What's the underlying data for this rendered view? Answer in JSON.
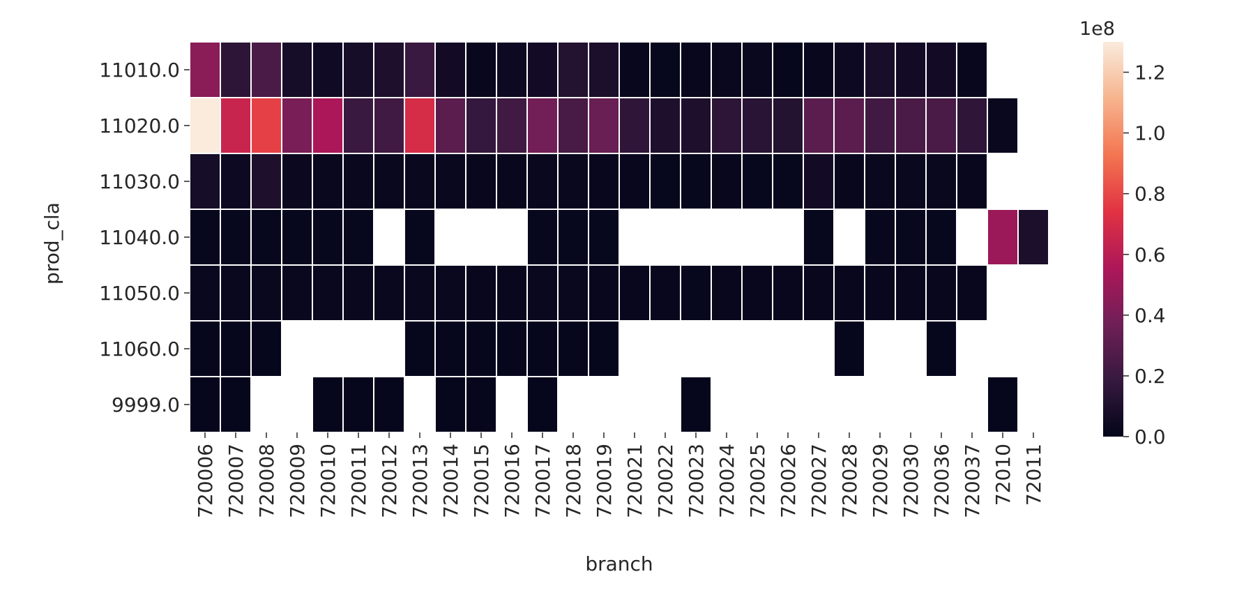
{
  "chart_data": {
    "type": "heatmap",
    "title": "",
    "xlabel": "branch",
    "ylabel": "prod_cla",
    "x": [
      "720006",
      "720007",
      "720008",
      "720009",
      "720010",
      "720011",
      "720012",
      "720013",
      "720014",
      "720015",
      "720016",
      "720017",
      "720018",
      "720019",
      "720021",
      "720022",
      "720023",
      "720024",
      "720025",
      "720026",
      "720027",
      "720028",
      "720029",
      "720030",
      "720036",
      "720037",
      "72010",
      "72011"
    ],
    "y": [
      "11010.0",
      "11020.0",
      "11030.0",
      "11040.0",
      "11050.0",
      "11060.0",
      "9999.0"
    ],
    "values": [
      [
        45000000,
        15000000,
        25000000,
        7000000,
        5000000,
        7000000,
        10000000,
        20000000,
        6000000,
        2000000,
        4000000,
        6000000,
        12000000,
        9000000,
        2000000,
        1500000,
        2000000,
        2500000,
        2500000,
        1000000,
        2000000,
        4000000,
        8000000,
        6000000,
        6000000,
        2000000,
        null,
        null
      ],
      [
        130000000,
        65000000,
        78000000,
        40000000,
        55000000,
        20000000,
        22000000,
        70000000,
        30000000,
        18000000,
        22000000,
        38000000,
        24000000,
        35000000,
        16000000,
        10000000,
        10000000,
        15000000,
        14000000,
        12000000,
        30000000,
        30000000,
        22000000,
        25000000,
        25000000,
        16000000,
        2500000,
        null
      ],
      [
        7000000,
        4000000,
        10000000,
        3000000,
        2500000,
        2500000,
        2500000,
        2500000,
        2500000,
        2000000,
        2000000,
        2500000,
        2500000,
        2000000,
        2000000,
        1500000,
        1500000,
        2000000,
        1500000,
        1500000,
        6000000,
        2000000,
        2500000,
        2500000,
        2500000,
        2000000,
        null,
        null
      ],
      [
        1500000,
        1500000,
        1500000,
        1500000,
        1500000,
        1500000,
        null,
        1500000,
        null,
        null,
        null,
        1500000,
        1500000,
        1500000,
        null,
        null,
        null,
        null,
        null,
        null,
        1500000,
        null,
        1500000,
        1500000,
        1500000,
        null,
        50000000,
        9000000
      ],
      [
        2500000,
        2500000,
        2500000,
        2500000,
        2500000,
        2500000,
        2500000,
        2500000,
        2500000,
        2000000,
        2000000,
        2500000,
        2500000,
        2000000,
        2000000,
        2000000,
        1500000,
        2000000,
        2000000,
        2000000,
        2000000,
        2000000,
        2000000,
        2000000,
        2000000,
        2000000,
        null,
        null
      ],
      [
        1000000,
        1000000,
        1000000,
        null,
        null,
        null,
        null,
        1000000,
        1000000,
        1000000,
        1000000,
        1000000,
        1000000,
        1000000,
        null,
        null,
        null,
        null,
        null,
        null,
        null,
        1000000,
        null,
        null,
        1000000,
        null,
        null,
        null
      ],
      [
        1000000,
        1000000,
        null,
        null,
        1000000,
        1000000,
        1000000,
        null,
        1000000,
        1000000,
        null,
        1000000,
        null,
        null,
        null,
        null,
        1000000,
        null,
        null,
        null,
        null,
        null,
        null,
        null,
        null,
        null,
        1000000,
        null
      ]
    ],
    "colorbar": {
      "min": 0,
      "max": 130000000,
      "ticks": [
        0,
        20000000,
        40000000,
        60000000,
        80000000,
        100000000,
        120000000
      ],
      "tick_labels": [
        "0.0",
        "0.2",
        "0.4",
        "0.6",
        "0.8",
        "1.0",
        "1.2"
      ],
      "offset_label": "1e8",
      "colormap": "rocket",
      "colormap_stops": [
        "#03051a",
        "#36193e",
        "#701f57",
        "#ae1759",
        "#e13342",
        "#f37651",
        "#f6b48e",
        "#faebdd"
      ]
    },
    "grid": false,
    "cell_border_color": "#ffffff",
    "missing_color": "#ffffff"
  }
}
